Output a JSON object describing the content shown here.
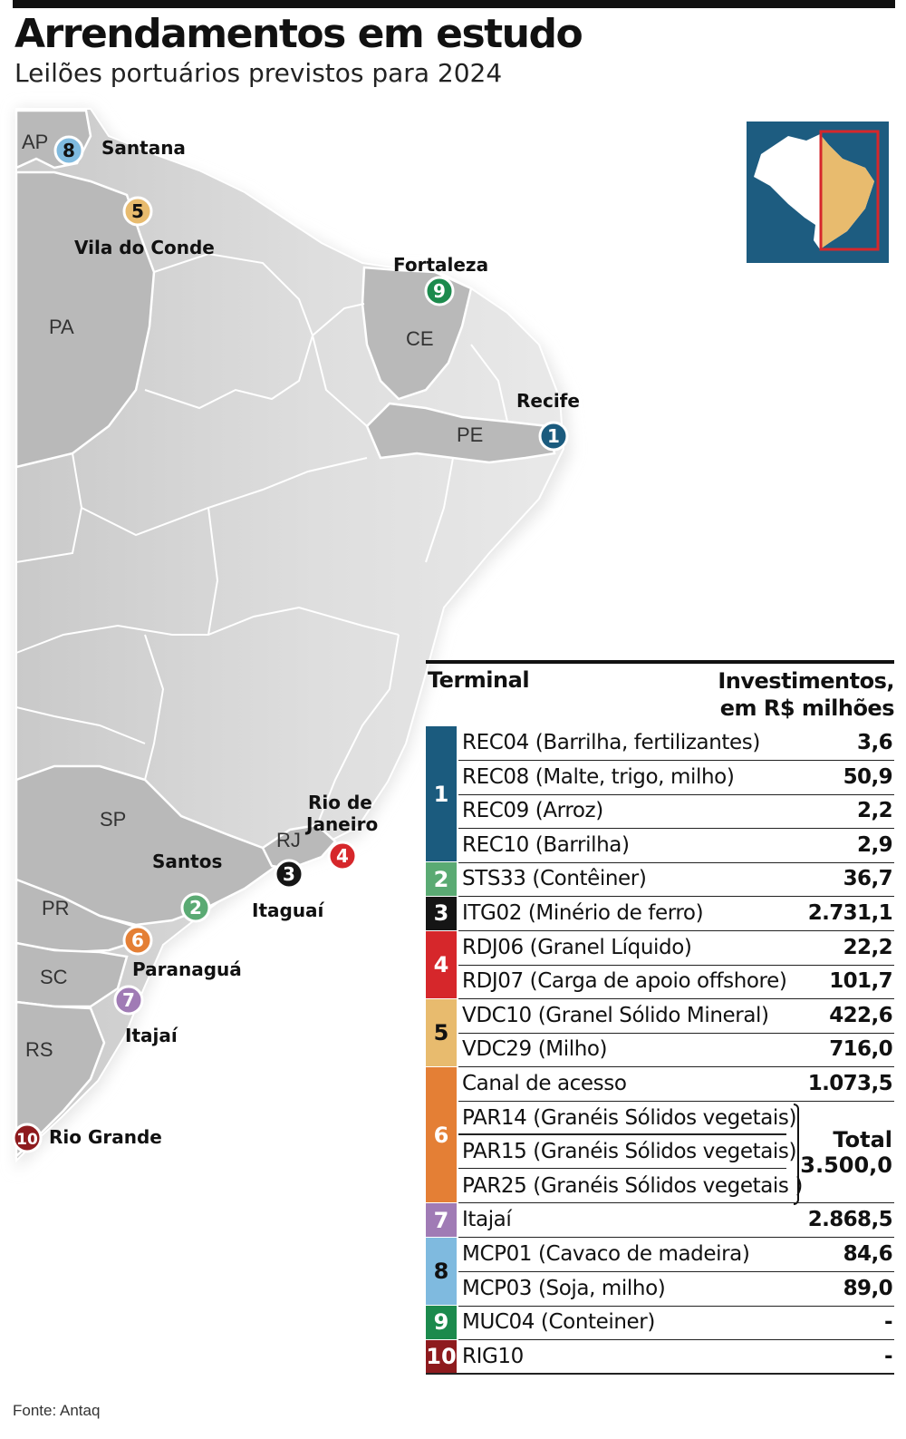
{
  "title": "Arrendamentos em estudo",
  "subtitle": "Leilões portuários previstos para 2024",
  "source": "Fonte: Antaq",
  "colors": {
    "1": "#1b5b7e",
    "2": "#5aaa73",
    "3": "#151515",
    "4": "#d6272b",
    "5": "#e8bb6e",
    "6": "#e47f35",
    "7": "#a07bb5",
    "8": "#7fbadf",
    "9": "#1c8a4d",
    "10": "#8e1b1e"
  },
  "map": {
    "state_labels": [
      "AP",
      "PA",
      "CE",
      "PE",
      "RJ",
      "SP",
      "PR",
      "SC",
      "RS"
    ],
    "ports": [
      {
        "num": "8",
        "name": "Santana"
      },
      {
        "num": "5",
        "name": "Vila do Conde"
      },
      {
        "num": "9",
        "name": "Fortaleza"
      },
      {
        "num": "1",
        "name": "Recife"
      },
      {
        "num": "4",
        "name": "Rio de Janeiro"
      },
      {
        "num": "3",
        "name": "Itaguaí"
      },
      {
        "num": "2",
        "name": "Santos"
      },
      {
        "num": "6",
        "name": "Paranaguá"
      },
      {
        "num": "7",
        "name": "Itajaí"
      },
      {
        "num": "10",
        "name": "Rio Grande"
      }
    ]
  },
  "table": {
    "header_terminal": "Terminal",
    "header_investment_line1": "Investimentos,",
    "header_investment_line2": "em R$ milhões",
    "groups": [
      {
        "num": "1",
        "rows": [
          {
            "code": "REC04",
            "desc": "(Barrilha, fertilizantes)",
            "value": "3,6"
          },
          {
            "code": "REC08",
            "desc": "(Malte, trigo, milho)",
            "value": "50,9"
          },
          {
            "code": "REC09",
            "desc": "(Arroz)",
            "value": "2,2"
          },
          {
            "code": "REC10",
            "desc": "(Barrilha)",
            "value": "2,9"
          }
        ]
      },
      {
        "num": "2",
        "rows": [
          {
            "code": "STS33",
            "desc": "(Contêiner)",
            "value": "36,7"
          }
        ]
      },
      {
        "num": "3",
        "rows": [
          {
            "code": "ITG02",
            "desc": "(Minério de ferro)",
            "value": "2.731,1"
          }
        ]
      },
      {
        "num": "4",
        "rows": [
          {
            "code": "RDJ06",
            "desc": "(Granel Líquido)",
            "value": "22,2"
          },
          {
            "code": "RDJ07",
            "desc": "(Carga de apoio offshore)",
            "value": "101,7"
          }
        ]
      },
      {
        "num": "5",
        "rows": [
          {
            "code": "VDC10",
            "desc": "(Granel Sólido Mineral)",
            "value": "422,6"
          },
          {
            "code": "VDC29",
            "desc": "(Milho)",
            "value": "716,0"
          }
        ]
      },
      {
        "num": "6",
        "rows": [
          {
            "code": "Canal de acesso",
            "desc": "",
            "value": "1.073,5"
          },
          {
            "code": "PAR14",
            "desc": "(Granéis Sólidos vegetais)",
            "value": ""
          },
          {
            "code": "PAR15",
            "desc": "(Granéis Sólidos vegetais)",
            "value": ""
          },
          {
            "code": "PAR25",
            "desc": "(Granéis Sólidos vegetais )",
            "value": ""
          }
        ],
        "total_label": "Total",
        "total_value": "3.500,0"
      },
      {
        "num": "7",
        "rows": [
          {
            "code": "Itajaí",
            "desc": "",
            "value": "2.868,5"
          }
        ]
      },
      {
        "num": "8",
        "rows": [
          {
            "code": "MCP01",
            "desc": "(Cavaco de madeira)",
            "value": "84,6"
          },
          {
            "code": "MCP03",
            "desc": "(Soja, milho)",
            "value": "89,0"
          }
        ]
      },
      {
        "num": "9",
        "rows": [
          {
            "code": "MUC04",
            "desc": "(Conteiner)",
            "value": "-"
          }
        ]
      },
      {
        "num": "10",
        "rows": [
          {
            "code": "RIG10",
            "desc": "",
            "value": "-"
          }
        ]
      }
    ]
  }
}
